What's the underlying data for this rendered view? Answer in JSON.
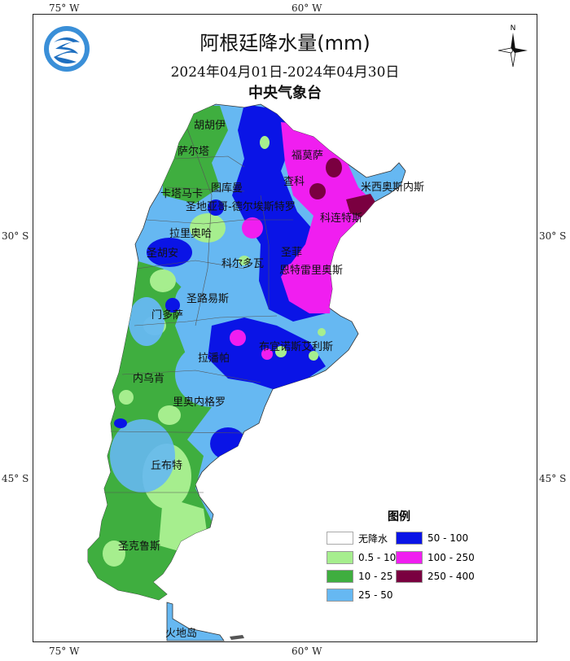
{
  "title": "阿根廷降水量(mm)",
  "date_range": "2024年04月01日-2024年04月30日",
  "issuer": "中央气象台",
  "ticks": {
    "top_75w": "75° W",
    "top_60w": "60° W",
    "bottom_75w": "75° W",
    "bottom_60w": "60° W",
    "left_30s": "30° S",
    "left_45s": "45° S",
    "right_30s": "30° S",
    "right_45s": "45° S"
  },
  "compass": {
    "north": "N"
  },
  "provinces": {
    "jujuy": "胡胡伊",
    "salta": "萨尔塔",
    "formosa": "福莫萨",
    "chaco": "查科",
    "misiones": "米西奥斯内斯",
    "tucuman": "图库曼",
    "catamarca": "卡塔马卡",
    "santiago": "圣地亚哥-德尔埃斯特罗",
    "corrientes": "科连特斯",
    "la_rioja": "拉里奥哈",
    "san_juan": "圣胡安",
    "cordoba": "科尔多瓦",
    "santa_fe": "圣菲",
    "entre_rios": "恩特雷里奥斯",
    "san_luis": "圣路易斯",
    "mendoza": "门多萨",
    "buenos_aires": "布宜诺斯艾利斯",
    "la_pampa": "拉潘帕",
    "neuquen": "内乌肯",
    "rio_negro": "里奥内格罗",
    "chubut": "丘布特",
    "santa_cruz": "圣克鲁斯",
    "tierra_del_fuego": "火地岛"
  },
  "legend": {
    "title": "图例",
    "items": [
      {
        "label": "无降水",
        "color": "#ffffff"
      },
      {
        "label": "0.5 - 10",
        "color": "#a6ee8e"
      },
      {
        "label": "10 - 25",
        "color": "#3fae3f"
      },
      {
        "label": "25 - 50",
        "color": "#66b8f2"
      },
      {
        "label": "50 - 100",
        "color": "#0a14e6"
      },
      {
        "label": "100 - 250",
        "color": "#f01ef0"
      },
      {
        "label": "250 - 400",
        "color": "#7a0040"
      }
    ]
  }
}
